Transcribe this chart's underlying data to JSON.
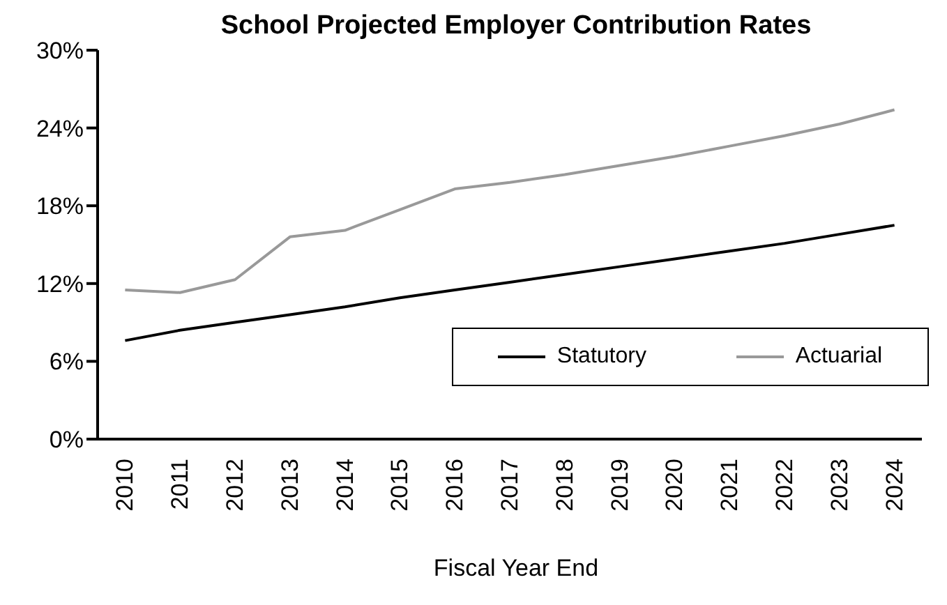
{
  "chart_data": {
    "type": "line",
    "title": "School Projected Employer Contribution Rates",
    "xlabel": "Fiscal Year End",
    "categories": [
      "2010",
      "2011",
      "2012",
      "2013",
      "2014",
      "2015",
      "2016",
      "2017",
      "2018",
      "2019",
      "2020",
      "2021",
      "2022",
      "2023",
      "2024"
    ],
    "series": [
      {
        "name": "Statutory",
        "color": "#000000",
        "values": [
          7.6,
          8.4,
          9.0,
          9.6,
          10.2,
          10.9,
          11.5,
          12.1,
          12.7,
          13.3,
          13.9,
          14.5,
          15.1,
          15.8,
          16.5
        ]
      },
      {
        "name": "Actuarial",
        "color": "#999999",
        "values": [
          11.5,
          11.3,
          12.3,
          15.6,
          16.1,
          17.7,
          19.3,
          19.8,
          20.4,
          21.1,
          21.8,
          22.6,
          23.4,
          24.3,
          25.4
        ]
      }
    ],
    "ylim": [
      0,
      30
    ],
    "yticks": [
      {
        "value": 0,
        "label": "0%"
      },
      {
        "value": 6,
        "label": "6%"
      },
      {
        "value": 12,
        "label": "12%"
      },
      {
        "value": 18,
        "label": "18%"
      },
      {
        "value": 24,
        "label": "24%"
      },
      {
        "value": 30,
        "label": "30%"
      }
    ],
    "grid": false,
    "legend": "bottom right",
    "marker": "none",
    "line_style": "solid"
  }
}
